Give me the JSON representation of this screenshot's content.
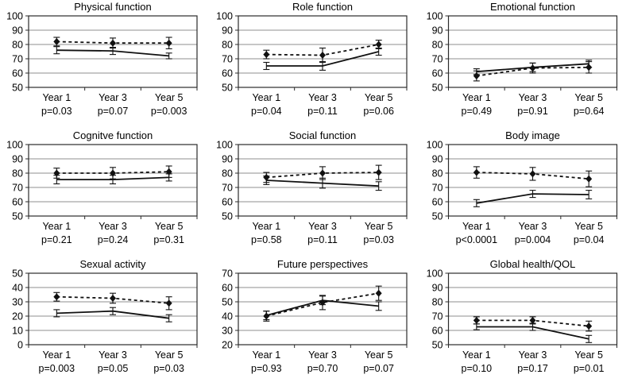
{
  "theme": {
    "background": "#ffffff",
    "grid_color": "#8f8f8f",
    "axis_color": "#2b2b2b",
    "line_color": "#111111",
    "text_color": "#000000"
  },
  "chart_data": [
    {
      "type": "line",
      "title": "Physical function",
      "categories": [
        "Year 1",
        "Year 3",
        "Year 5"
      ],
      "p_values": [
        "p=0.03",
        "p=0.07",
        "p=0.003"
      ],
      "ylim": [
        50,
        100
      ],
      "yticks": [
        50,
        60,
        70,
        80,
        90,
        100
      ],
      "grid": true,
      "legend": "none",
      "series": [
        {
          "name": "solid-line",
          "style": "solid",
          "marker": "none",
          "values": [
            76,
            75.5,
            72
          ],
          "errors": [
            2.5,
            2.5,
            2
          ]
        },
        {
          "name": "dashed-line-diamonds",
          "style": "dashed",
          "marker": "diamond",
          "values": [
            82,
            81,
            81
          ],
          "errors": [
            3,
            3.5,
            4
          ]
        }
      ]
    },
    {
      "type": "line",
      "title": "Role function",
      "categories": [
        "Year 1",
        "Year 3",
        "Year 5"
      ],
      "p_values": [
        "p=0.04",
        "p=0.11",
        "p=0.06"
      ],
      "ylim": [
        50,
        100
      ],
      "yticks": [
        50,
        60,
        70,
        80,
        90,
        100
      ],
      "grid": true,
      "legend": "none",
      "series": [
        {
          "name": "solid-line",
          "style": "solid",
          "marker": "none",
          "values": [
            65,
            65,
            75
          ],
          "errors": [
            2.5,
            3,
            2.5
          ]
        },
        {
          "name": "dashed-line-diamonds",
          "style": "dashed",
          "marker": "diamond",
          "values": [
            73,
            72.5,
            80
          ],
          "errors": [
            3,
            5,
            3
          ]
        }
      ]
    },
    {
      "type": "line",
      "title": "Emotional function",
      "categories": [
        "Year 1",
        "Year 3",
        "Year 5"
      ],
      "p_values": [
        "p=0.49",
        "p=0.91",
        "p=0.64"
      ],
      "ylim": [
        50,
        100
      ],
      "yticks": [
        50,
        60,
        70,
        80,
        90,
        100
      ],
      "grid": true,
      "legend": "none",
      "series": [
        {
          "name": "solid-line",
          "style": "solid",
          "marker": "none",
          "values": [
            61,
            64,
            66.5
          ],
          "errors": [
            2,
            3,
            2.5
          ]
        },
        {
          "name": "dashed-line-diamonds",
          "style": "dashed",
          "marker": "diamond",
          "values": [
            58,
            63.5,
            64
          ],
          "errors": [
            3.5,
            3.5,
            4
          ]
        }
      ]
    },
    {
      "type": "line",
      "title": "Cognitve function",
      "categories": [
        "Year 1",
        "Year 3",
        "Year 5"
      ],
      "p_values": [
        "p=0.21",
        "p=0.24",
        "p=0.31"
      ],
      "ylim": [
        50,
        100
      ],
      "yticks": [
        50,
        60,
        70,
        80,
        90,
        100
      ],
      "grid": true,
      "legend": "none",
      "series": [
        {
          "name": "solid-line",
          "style": "solid",
          "marker": "none",
          "values": [
            75.5,
            75.5,
            77
          ],
          "errors": [
            3,
            3,
            2.5
          ]
        },
        {
          "name": "dashed-line-diamonds",
          "style": "dashed",
          "marker": "diamond",
          "values": [
            80,
            80,
            81
          ],
          "errors": [
            3.5,
            4,
            4
          ]
        }
      ]
    },
    {
      "type": "line",
      "title": "Social function",
      "categories": [
        "Year 1",
        "Year 3",
        "Year 5"
      ],
      "p_values": [
        "p=0.58",
        "p=0.11",
        "p=0.03"
      ],
      "ylim": [
        50,
        100
      ],
      "yticks": [
        50,
        60,
        70,
        80,
        90,
        100
      ],
      "grid": true,
      "legend": "none",
      "series": [
        {
          "name": "solid-line",
          "style": "solid",
          "marker": "none",
          "values": [
            75,
            73,
            71
          ],
          "errors": [
            3,
            3.5,
            3
          ]
        },
        {
          "name": "dashed-line-diamonds",
          "style": "dashed",
          "marker": "diamond",
          "values": [
            77,
            80,
            80.5
          ],
          "errors": [
            3.5,
            4.5,
            5
          ]
        }
      ]
    },
    {
      "type": "line",
      "title": "Body image",
      "categories": [
        "Year 1",
        "Year 3",
        "Year 5"
      ],
      "p_values": [
        "p<0.0001",
        "p=0.004",
        "p=0.04"
      ],
      "ylim": [
        50,
        100
      ],
      "yticks": [
        50,
        60,
        70,
        80,
        90,
        100
      ],
      "grid": true,
      "legend": "none",
      "series": [
        {
          "name": "solid-line",
          "style": "solid",
          "marker": "none",
          "values": [
            59,
            65.5,
            65
          ],
          "errors": [
            2.5,
            2.5,
            3
          ]
        },
        {
          "name": "dashed-line-diamonds",
          "style": "dashed",
          "marker": "diamond",
          "values": [
            80.5,
            79.5,
            76
          ],
          "errors": [
            4,
            4.5,
            5.5
          ]
        }
      ]
    },
    {
      "type": "line",
      "title": "Sexual activity",
      "categories": [
        "Year 1",
        "Year 3",
        "Year 5"
      ],
      "p_values": [
        "p=0.003",
        "p=0.05",
        "p=0.03"
      ],
      "ylim": [
        0,
        50
      ],
      "yticks": [
        0,
        10,
        20,
        30,
        40,
        50
      ],
      "grid": true,
      "legend": "none",
      "series": [
        {
          "name": "solid-line",
          "style": "solid",
          "marker": "none",
          "values": [
            22,
            23.5,
            18.5
          ],
          "errors": [
            2.5,
            2.5,
            2.5
          ]
        },
        {
          "name": "dashed-line-diamonds",
          "style": "dashed",
          "marker": "diamond",
          "values": [
            33.5,
            32.5,
            29
          ],
          "errors": [
            3,
            3.5,
            4.5
          ]
        }
      ]
    },
    {
      "type": "line",
      "title": "Future perspectives",
      "categories": [
        "Year 1",
        "Year 3",
        "Year 5"
      ],
      "p_values": [
        "p=0.93",
        "p=0.70",
        "p=0.07"
      ],
      "ylim": [
        20,
        70
      ],
      "yticks": [
        20,
        30,
        40,
        50,
        60,
        70
      ],
      "grid": true,
      "legend": "none",
      "series": [
        {
          "name": "solid-line",
          "style": "solid",
          "marker": "none",
          "values": [
            40.5,
            51,
            47
          ],
          "errors": [
            3,
            3,
            3
          ]
        },
        {
          "name": "dashed-line-diamonds",
          "style": "dashed",
          "marker": "diamond",
          "values": [
            40,
            49.5,
            56
          ],
          "errors": [
            3.5,
            5,
            5
          ]
        }
      ]
    },
    {
      "type": "line",
      "title": "Global health/QOL",
      "categories": [
        "Year 1",
        "Year 3",
        "Year 5"
      ],
      "p_values": [
        "p=0.10",
        "p=0.17",
        "p=0.01"
      ],
      "ylim": [
        50,
        100
      ],
      "yticks": [
        50,
        60,
        70,
        80,
        90,
        100
      ],
      "grid": true,
      "legend": "none",
      "series": [
        {
          "name": "solid-line",
          "style": "solid",
          "marker": "none",
          "values": [
            62.5,
            62.5,
            54
          ],
          "errors": [
            2,
            2.5,
            2.5
          ]
        },
        {
          "name": "dashed-line-diamonds",
          "style": "dashed",
          "marker": "diamond",
          "values": [
            67,
            67,
            63
          ],
          "errors": [
            2.5,
            2.5,
            3.5
          ]
        }
      ]
    }
  ]
}
